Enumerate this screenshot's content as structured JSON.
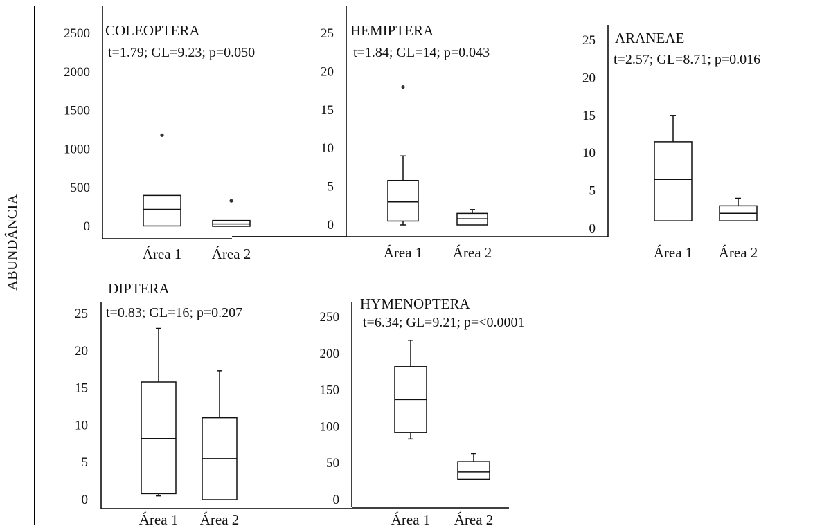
{
  "figure": {
    "ylabel": "ABUNDÂNCIA"
  },
  "chart_data": [
    {
      "type": "box",
      "title": "COLEOPTERA",
      "subtitle": "t=1.79; GL=9.23; p=0.050",
      "categories": [
        "Área 1",
        "Área 2"
      ],
      "yticks": [
        0,
        500,
        1000,
        1500,
        2000,
        2500
      ],
      "ylim": [
        0,
        2500
      ],
      "boxes": [
        {
          "name": "Área 1",
          "q1": 5,
          "median": 220,
          "q3": 400,
          "whisker_low": 5,
          "whisker_high": 400,
          "outliers": [
            1180
          ]
        },
        {
          "name": "Área 2",
          "q1": 0,
          "median": 30,
          "q3": 75,
          "whisker_low": 0,
          "whisker_high": 75,
          "outliers": [
            330
          ]
        }
      ]
    },
    {
      "type": "box",
      "title": "HEMIPTERA",
      "subtitle": "t=1.84; GL=14; p=0.043",
      "categories": [
        "Área 1",
        "Área 2"
      ],
      "yticks": [
        0,
        5,
        10,
        15,
        20,
        25
      ],
      "ylim": [
        0,
        25
      ],
      "boxes": [
        {
          "name": "Área 1",
          "q1": 0.5,
          "median": 3,
          "q3": 5.8,
          "whisker_low": 0,
          "whisker_high": 9,
          "outliers": [
            18
          ]
        },
        {
          "name": "Área 2",
          "q1": 0,
          "median": 0.8,
          "q3": 1.5,
          "whisker_low": 0,
          "whisker_high": 2,
          "outliers": []
        }
      ]
    },
    {
      "type": "box",
      "title": "ARANEAE",
      "subtitle": "t=2.57; GL=8.71; p=0.016",
      "categories": [
        "Área 1",
        "Área 2"
      ],
      "yticks": [
        0,
        5,
        10,
        15,
        20,
        25
      ],
      "ylim": [
        0,
        25
      ],
      "boxes": [
        {
          "name": "Área 1",
          "q1": 1,
          "median": 6.5,
          "q3": 11.5,
          "whisker_low": 1,
          "whisker_high": 15,
          "outliers": []
        },
        {
          "name": "Área 2",
          "q1": 1,
          "median": 2,
          "q3": 3,
          "whisker_low": 1,
          "whisker_high": 4,
          "outliers": []
        }
      ]
    },
    {
      "type": "box",
      "title": "DIPTERA",
      "subtitle": "t=0.83; GL=16; p=0.207",
      "categories": [
        "Área 1",
        "Área 2"
      ],
      "yticks": [
        0,
        5,
        10,
        15,
        20,
        25
      ],
      "ylim": [
        0,
        25
      ],
      "boxes": [
        {
          "name": "Área 1",
          "q1": 0.8,
          "median": 8.2,
          "q3": 15.8,
          "whisker_low": 0.5,
          "whisker_high": 23,
          "outliers": []
        },
        {
          "name": "Área 2",
          "q1": 0,
          "median": 5.5,
          "q3": 11,
          "whisker_low": 0,
          "whisker_high": 17.3,
          "outliers": []
        }
      ]
    },
    {
      "type": "box",
      "title": "HYMENOPTERA",
      "subtitle": "t=6.34; GL=9.21; p=<0.0001",
      "categories": [
        "Área 1",
        "Área 2"
      ],
      "yticks": [
        0,
        50,
        100,
        150,
        200,
        250
      ],
      "ylim": [
        0,
        250
      ],
      "boxes": [
        {
          "name": "Área 1",
          "q1": 92,
          "median": 137,
          "q3": 182,
          "whisker_low": 83,
          "whisker_high": 218,
          "outliers": []
        },
        {
          "name": "Área 2",
          "q1": 28,
          "median": 38,
          "q3": 52,
          "whisker_low": 28,
          "whisker_high": 63,
          "outliers": []
        }
      ]
    }
  ]
}
